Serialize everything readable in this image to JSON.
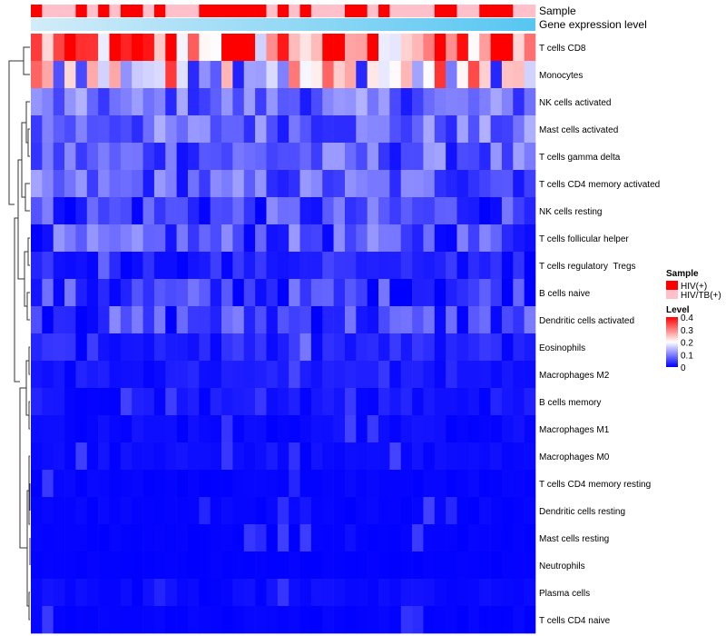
{
  "chart_data": {
    "type": "heatmap",
    "title": "",
    "annotation_labels": [
      "Sample",
      "Gene expression level"
    ],
    "rows": [
      "T cells CD8",
      "Monocytes",
      "NK cells activated",
      "Mast cells activated",
      "T cells gamma delta",
      "T cells CD4 memory activated",
      "NK cells resting",
      "T cells follicular helper",
      "T cells regulatory  Tregs",
      "B cells naive",
      "Dendritic cells activated",
      "Eosinophils",
      "Macrophages M2",
      "B cells memory",
      "Macrophages M1",
      "Macrophages M0",
      "T cells CD4 memory resting",
      "Dendritic cells resting",
      "Mast cells resting",
      "Neutrophils",
      "Plasma cells",
      "T cells CD4 naive"
    ],
    "row_levels_approx": [
      0.3,
      0.2,
      0.08,
      0.08,
      0.07,
      0.07,
      0.05,
      0.06,
      0.03,
      0.04,
      0.05,
      0.03,
      0.02,
      0.02,
      0.01,
      0.01,
      0.005,
      0.005,
      0.003,
      0.002,
      0.01,
      0.004
    ],
    "columns_count": 45,
    "sample_annotation": "HPPPHPHPHHPHPPPHHHHHHPHPHPPPHHPHPPPPHHPPHHHPP",
    "legend_sample": {
      "title": "Sample",
      "items": [
        {
          "label": "HIV(+)",
          "color": "#ff0000"
        },
        {
          "label": "HIV/TB(+)",
          "color": "#ffc0cb"
        }
      ]
    },
    "legend_level": {
      "title": "Level",
      "ticks": [
        "0.4",
        "0.3",
        "0.2",
        "0.1",
        "0"
      ],
      "range": [
        0,
        0.4
      ]
    },
    "colors": {
      "low": "#0000ff",
      "mid": "#ffffff",
      "high": "#ff0000",
      "expression_light": "#d2ecf9",
      "expression_dark": "#57c6f1"
    }
  }
}
